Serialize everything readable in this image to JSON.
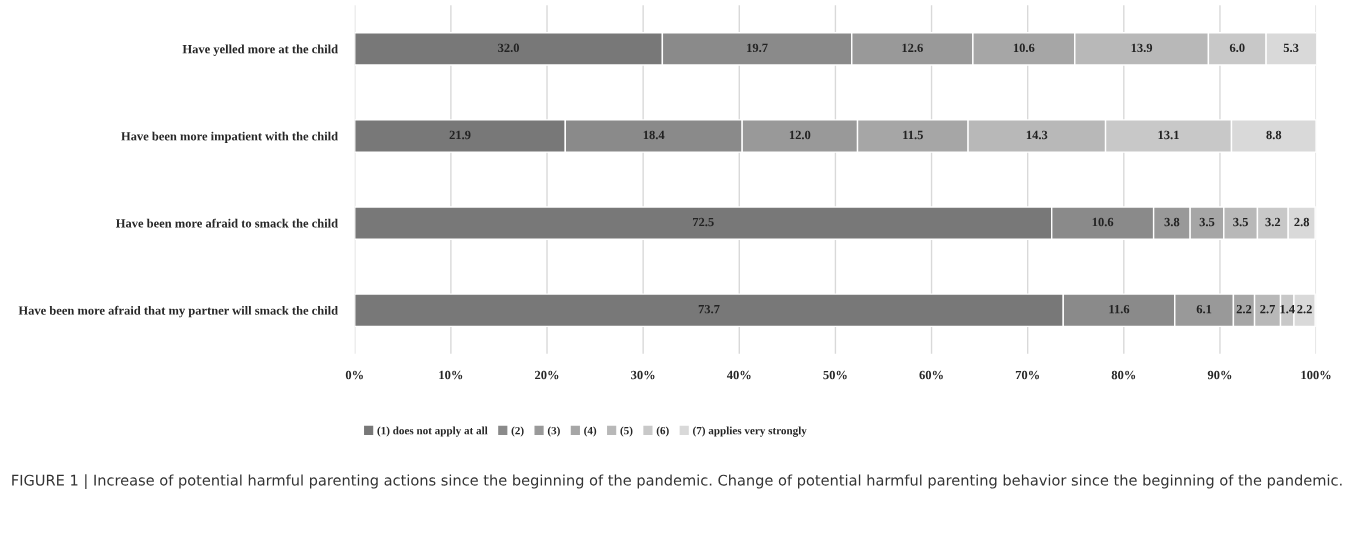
{
  "chart_data": {
    "type": "bar",
    "orientation": "horizontal",
    "stacked": true,
    "categories": [
      "Have yelled more at the child",
      "Have been more impatient with the child",
      "Have been more afraid to smack the child",
      "Have been more afraid that my partner will smack the child"
    ],
    "series": [
      {
        "name": "(1) does not apply at all",
        "color": "#787878",
        "values": [
          32.0,
          21.9,
          72.5,
          73.7
        ],
        "value_labels": [
          "32.0",
          "21.9",
          "72.5",
          "73.7"
        ]
      },
      {
        "name": "(2)",
        "color": "#8a8a8a",
        "values": [
          19.7,
          18.4,
          10.6,
          11.6
        ],
        "value_labels": [
          "19.7",
          "18.4",
          "10.6",
          "11.6"
        ]
      },
      {
        "name": "(3)",
        "color": "#999999",
        "values": [
          12.6,
          12.0,
          3.8,
          6.1
        ],
        "value_labels": [
          "12.6",
          "12.0",
          "3.8",
          "6.1"
        ]
      },
      {
        "name": "(4)",
        "color": "#a6a6a6",
        "values": [
          10.6,
          11.5,
          3.5,
          2.2
        ],
        "value_labels": [
          "10.6",
          "11.5",
          "3.5",
          "2.2"
        ]
      },
      {
        "name": "(5)",
        "color": "#b8b8b8",
        "values": [
          13.9,
          14.3,
          3.5,
          2.7
        ],
        "value_labels": [
          "13.9",
          "14.3",
          "3.5",
          "2.7"
        ]
      },
      {
        "name": "(6)",
        "color": "#c8c8c8",
        "values": [
          6.0,
          13.1,
          3.2,
          1.4
        ],
        "value_labels": [
          "6.0",
          "13.1",
          "3.2",
          "1.4"
        ]
      },
      {
        "name": "(7) applies very strongly",
        "color": "#d9d9d9",
        "values": [
          5.3,
          8.8,
          2.8,
          2.2
        ],
        "value_labels": [
          "5.3",
          "8.8",
          "2.8",
          "2.2"
        ]
      }
    ],
    "xlim": [
      0,
      100
    ],
    "xticks": [
      {
        "value": 0,
        "label": "0%"
      },
      {
        "value": 10,
        "label": "10%"
      },
      {
        "value": 20,
        "label": "20%"
      },
      {
        "value": 30,
        "label": "30%"
      },
      {
        "value": 40,
        "label": "40%"
      },
      {
        "value": 50,
        "label": "50%"
      },
      {
        "value": 60,
        "label": "60%"
      },
      {
        "value": 70,
        "label": "70%"
      },
      {
        "value": 80,
        "label": "80%"
      },
      {
        "value": 90,
        "label": "90%"
      },
      {
        "value": 100,
        "label": "100%"
      }
    ],
    "grid": "x",
    "legend": "bottom",
    "annotations": [
      "FIGURE 1 | Increase of potential harmful parenting actions since the beginning of the pandemic. Change of potential harmful parenting behavior since the beginning of the pandemic."
    ]
  }
}
